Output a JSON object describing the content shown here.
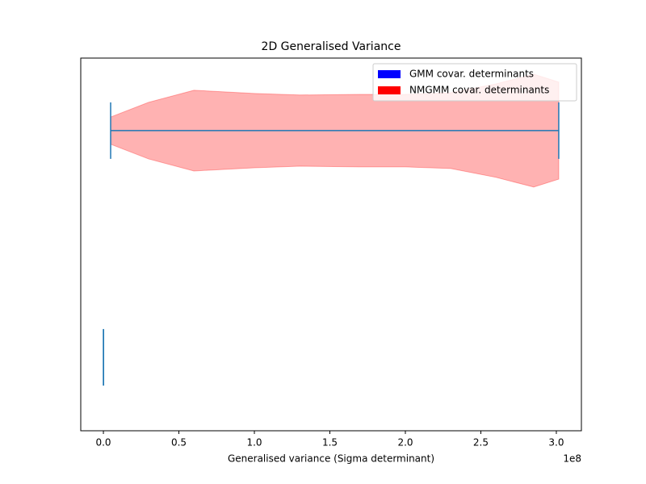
{
  "chart_data": {
    "type": "violin",
    "title": "2D Generalised Variance",
    "x_label": "Generalised variance (Sigma determinant)",
    "x_offset_label": "1e8",
    "xlim": [
      -0.15,
      3.166
    ],
    "xticks": [
      {
        "value": 0,
        "label": "0.0"
      },
      0.5,
      {
        "value": 1,
        "label": "1.0"
      },
      1.5,
      {
        "value": 2,
        "label": "2.0"
      },
      2.5,
      {
        "value": 3,
        "label": "3.0"
      }
    ],
    "ylim": [
      0.676,
      2.32
    ],
    "legend": "upper right",
    "line_color": "#1f77b4",
    "series": [
      {
        "name": "GMM covar. determinants",
        "color": "#0000ff",
        "position": 1,
        "min": 0,
        "max": 0.001
      },
      {
        "name": "NMGMM covar. determinants",
        "color": "#ff0000",
        "position": 2,
        "min": 0.048,
        "max": 3.016,
        "density_x": [
          0.048,
          0.3,
          0.6,
          1.0,
          1.3,
          1.7,
          2.0,
          2.3,
          2.6,
          2.85,
          3.016
        ],
        "density_width": [
          0.06,
          0.125,
          0.178,
          0.164,
          0.157,
          0.16,
          0.16,
          0.167,
          0.206,
          0.249,
          0.214
        ]
      }
    ]
  }
}
